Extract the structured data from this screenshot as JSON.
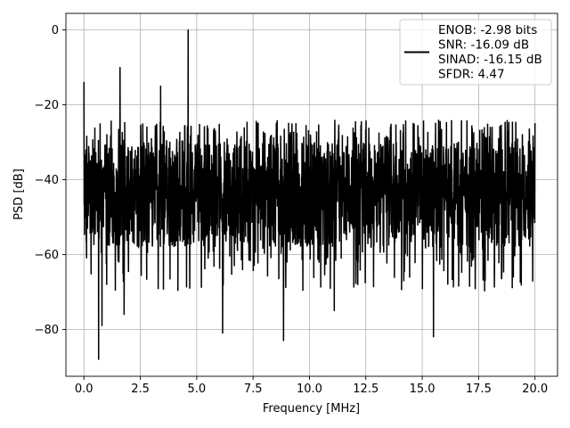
{
  "chart_data": {
    "type": "line",
    "xlabel": "Frequency [MHz]",
    "ylabel": "PSD [dB]",
    "xlim": [
      -0.8,
      21.0
    ],
    "ylim": [
      -92.5,
      4.4
    ],
    "x_ticks": [
      0.0,
      2.5,
      5.0,
      7.5,
      10.0,
      12.5,
      15.0,
      17.5,
      20.0
    ],
    "x_tick_labels": [
      "0.0",
      "2.5",
      "5.0",
      "7.5",
      "10.0",
      "12.5",
      "15.0",
      "17.5",
      "20.0"
    ],
    "y_ticks": [
      0,
      -20,
      -40,
      -60,
      -80
    ],
    "y_tick_labels": [
      "0",
      "−20",
      "−40",
      "−60",
      "−80"
    ],
    "grid": true,
    "legend_position": "top-right",
    "series": [
      {
        "color": "#000000",
        "x_range_mhz": [
          0.0,
          20.0
        ],
        "noise_floor_db": [
          -58,
          -30
        ],
        "notable_points": [
          {
            "x": 0.0,
            "y": -14
          },
          {
            "x": 0.05,
            "y": -48
          },
          {
            "x": 0.65,
            "y": -88
          },
          {
            "x": 0.8,
            "y": -79
          },
          {
            "x": 1.6,
            "y": -10
          },
          {
            "x": 1.78,
            "y": -76
          },
          {
            "x": 3.4,
            "y": -15
          },
          {
            "x": 4.62,
            "y": 0
          },
          {
            "x": 6.15,
            "y": -81
          },
          {
            "x": 8.85,
            "y": -83
          },
          {
            "x": 11.1,
            "y": -75
          },
          {
            "x": 15.5,
            "y": -82
          },
          {
            "x": 20.0,
            "y": -25
          }
        ]
      }
    ],
    "legend": {
      "lines": [
        "ENOB: -2.98 bits",
        "SNR: -16.09 dB",
        "SINAD: -16.15 dB",
        "SFDR: 4.47"
      ]
    }
  }
}
